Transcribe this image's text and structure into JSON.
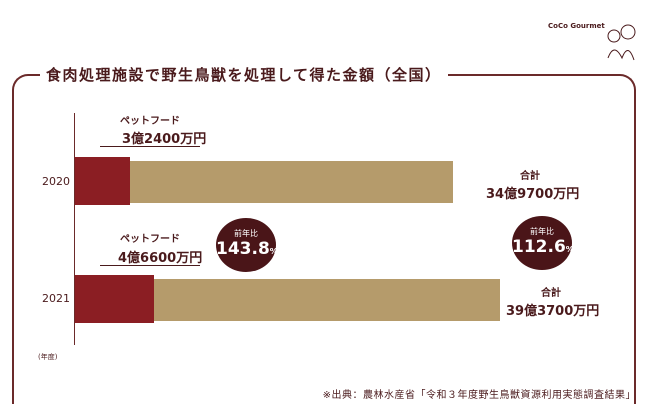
{
  "logo": {
    "text": "CoCo Gourmet"
  },
  "chart_data": {
    "type": "bar",
    "title": "食肉処理施設で野生鳥獣を処理して得た金額（全国）",
    "categories": [
      "2020",
      "2021"
    ],
    "unit_label": "(年度)",
    "series": [
      {
        "name": "ペットフード",
        "values": [
          3.24,
          4.66
        ],
        "labels": [
          "3億2400万円",
          "4億6600万円"
        ],
        "color": "#8b1e23"
      },
      {
        "name": "合計",
        "values": [
          34.97,
          39.37
        ],
        "labels": [
          "34億9700万円",
          "39億3700万円"
        ],
        "color": "#b59b6b"
      }
    ],
    "value_unit": "億円",
    "annotations": [
      {
        "label": "前年比",
        "value": "143.8",
        "suffix": "%",
        "target": "ペットフード 2021"
      },
      {
        "label": "前年比",
        "value": "112.6",
        "suffix": "%",
        "target": "合計 2021"
      }
    ],
    "source": "※出典：農林水産省「令和３年度野生鳥獣資源利用実態調査結果」"
  }
}
